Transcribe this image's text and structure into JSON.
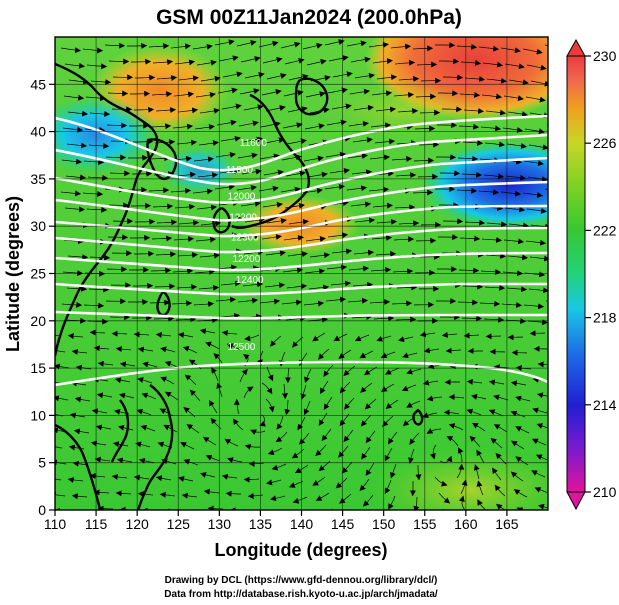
{
  "title": "GSM 00Z11Jan2024 (200.0hPa)",
  "x_axis": {
    "label": "Longitude (degrees)",
    "ticks": [
      "110",
      "115",
      "120",
      "125",
      "130",
      "135",
      "140",
      "145",
      "150",
      "155",
      "160",
      "165"
    ],
    "range": [
      110,
      170
    ]
  },
  "y_axis": {
    "label": "Latitude  (degrees)",
    "ticks": [
      "0",
      "5",
      "10",
      "15",
      "20",
      "25",
      "30",
      "35",
      "40",
      "45"
    ],
    "range": [
      0,
      50
    ]
  },
  "colorbar": {
    "ticks": [
      "230",
      "226",
      "222",
      "218",
      "214",
      "210"
    ],
    "range": [
      210,
      230
    ],
    "colors": [
      "#e0149c",
      "#7a1ad0",
      "#1f1fd2",
      "#1e6ee6",
      "#18c8e6",
      "#22d27a",
      "#36c832",
      "#7ad222",
      "#c8d628",
      "#f0a01e",
      "#f06450",
      "#e83c3c"
    ]
  },
  "contour_labels": [
    {
      "text": "11600",
      "lon": 132.5,
      "lat": 38.5
    },
    {
      "text": "11800",
      "lon": 130.8,
      "lat": 35.6
    },
    {
      "text": "12000",
      "lon": 131.0,
      "lat": 32.8
    },
    {
      "text": "12200",
      "lon": 131.2,
      "lat": 30.6
    },
    {
      "text": "12300",
      "lon": 131.4,
      "lat": 28.5
    },
    {
      "text": "12200",
      "lon": 131.6,
      "lat": 26.2
    },
    {
      "text": "12400",
      "lon": 132.0,
      "lat": 24.0
    },
    {
      "text": "12500",
      "lon": 131.0,
      "lat": 16.9
    }
  ],
  "credits": {
    "line1": "Drawing by DCL (https://www.gfd-dennou.org/library/dcl/)",
    "line2": "Data from http://database.rish.kyoto-u.ac.jp/arch/jmadata/"
  }
}
